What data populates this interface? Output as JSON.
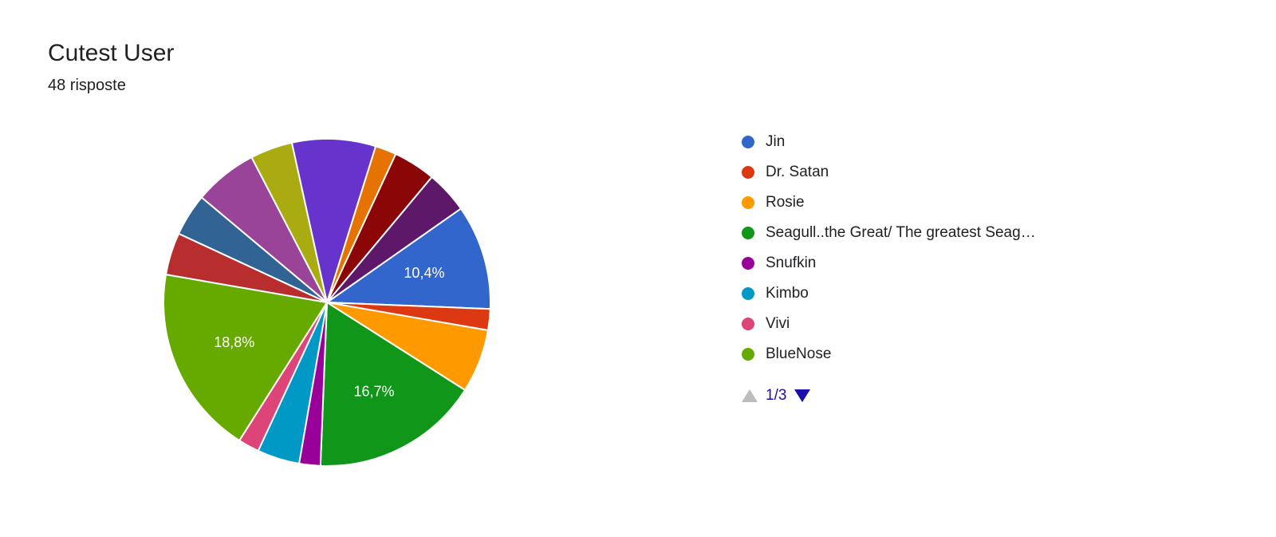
{
  "header": {
    "title": "Cutest User",
    "subtitle": "48 risposte"
  },
  "chart": {
    "type": "pie",
    "background_color": "#ffffff",
    "stroke_color": "#ffffff",
    "stroke_width": 2,
    "label_color": "#ffffff",
    "label_fontsize": 18,
    "visible_labels": {
      "jin": "10,4%",
      "seagull": "16,7%",
      "bluenose": "18,8%"
    },
    "slices": [
      {
        "key": "jin",
        "label": "Jin",
        "value": 10.4,
        "color": "#3366cc"
      },
      {
        "key": "drsatan",
        "label": "Dr. Satan",
        "value": 2.1,
        "color": "#dc3912"
      },
      {
        "key": "rosie",
        "label": "Rosie",
        "value": 6.3,
        "color": "#ff9900"
      },
      {
        "key": "seagull",
        "label": "Seagull..the Great/ The greatest Seag…",
        "value": 16.7,
        "color": "#109618"
      },
      {
        "key": "snufkin",
        "label": "Snufkin",
        "value": 2.1,
        "color": "#990099"
      },
      {
        "key": "kimbo",
        "label": "Kimbo",
        "value": 4.2,
        "color": "#0099c6"
      },
      {
        "key": "vivi",
        "label": "Vivi",
        "value": 2.1,
        "color": "#dd4477"
      },
      {
        "key": "bluenose",
        "label": "BlueNose",
        "value": 18.8,
        "color": "#66aa00"
      },
      {
        "key": "extra1",
        "label": "",
        "value": 4.2,
        "color": "#b82e2e"
      },
      {
        "key": "extra2",
        "label": "",
        "value": 4.2,
        "color": "#316395"
      },
      {
        "key": "extra3",
        "label": "",
        "value": 6.3,
        "color": "#994499"
      },
      {
        "key": "extra4",
        "label": "",
        "value": 4.2,
        "color": "#aaaa11"
      },
      {
        "key": "extra5",
        "label": "",
        "value": 8.3,
        "color": "#6633cc"
      },
      {
        "key": "extra6",
        "label": "",
        "value": 2.1,
        "color": "#e67300"
      },
      {
        "key": "extra7",
        "label": "",
        "value": 4.2,
        "color": "#8b0707"
      },
      {
        "key": "extra8",
        "label": "",
        "value": 4.2,
        "color": "#5e1869"
      }
    ]
  },
  "legend": {
    "page_items": [
      {
        "color": "#3366cc",
        "label": "Jin"
      },
      {
        "color": "#dc3912",
        "label": "Dr. Satan"
      },
      {
        "color": "#ff9900",
        "label": "Rosie"
      },
      {
        "color": "#109618",
        "label": "Seagull..the Great/ The greatest Seag…"
      },
      {
        "color": "#990099",
        "label": "Snufkin"
      },
      {
        "color": "#0099c6",
        "label": "Kimbo"
      },
      {
        "color": "#dd4477",
        "label": "Vivi"
      },
      {
        "color": "#66aa00",
        "label": "BlueNose"
      }
    ],
    "pager": {
      "text": "1/3",
      "up_enabled": false,
      "down_enabled": true,
      "up_color": "#bdbdbd",
      "down_color": "#1a0dab",
      "text_color": "#1a0dab"
    }
  }
}
